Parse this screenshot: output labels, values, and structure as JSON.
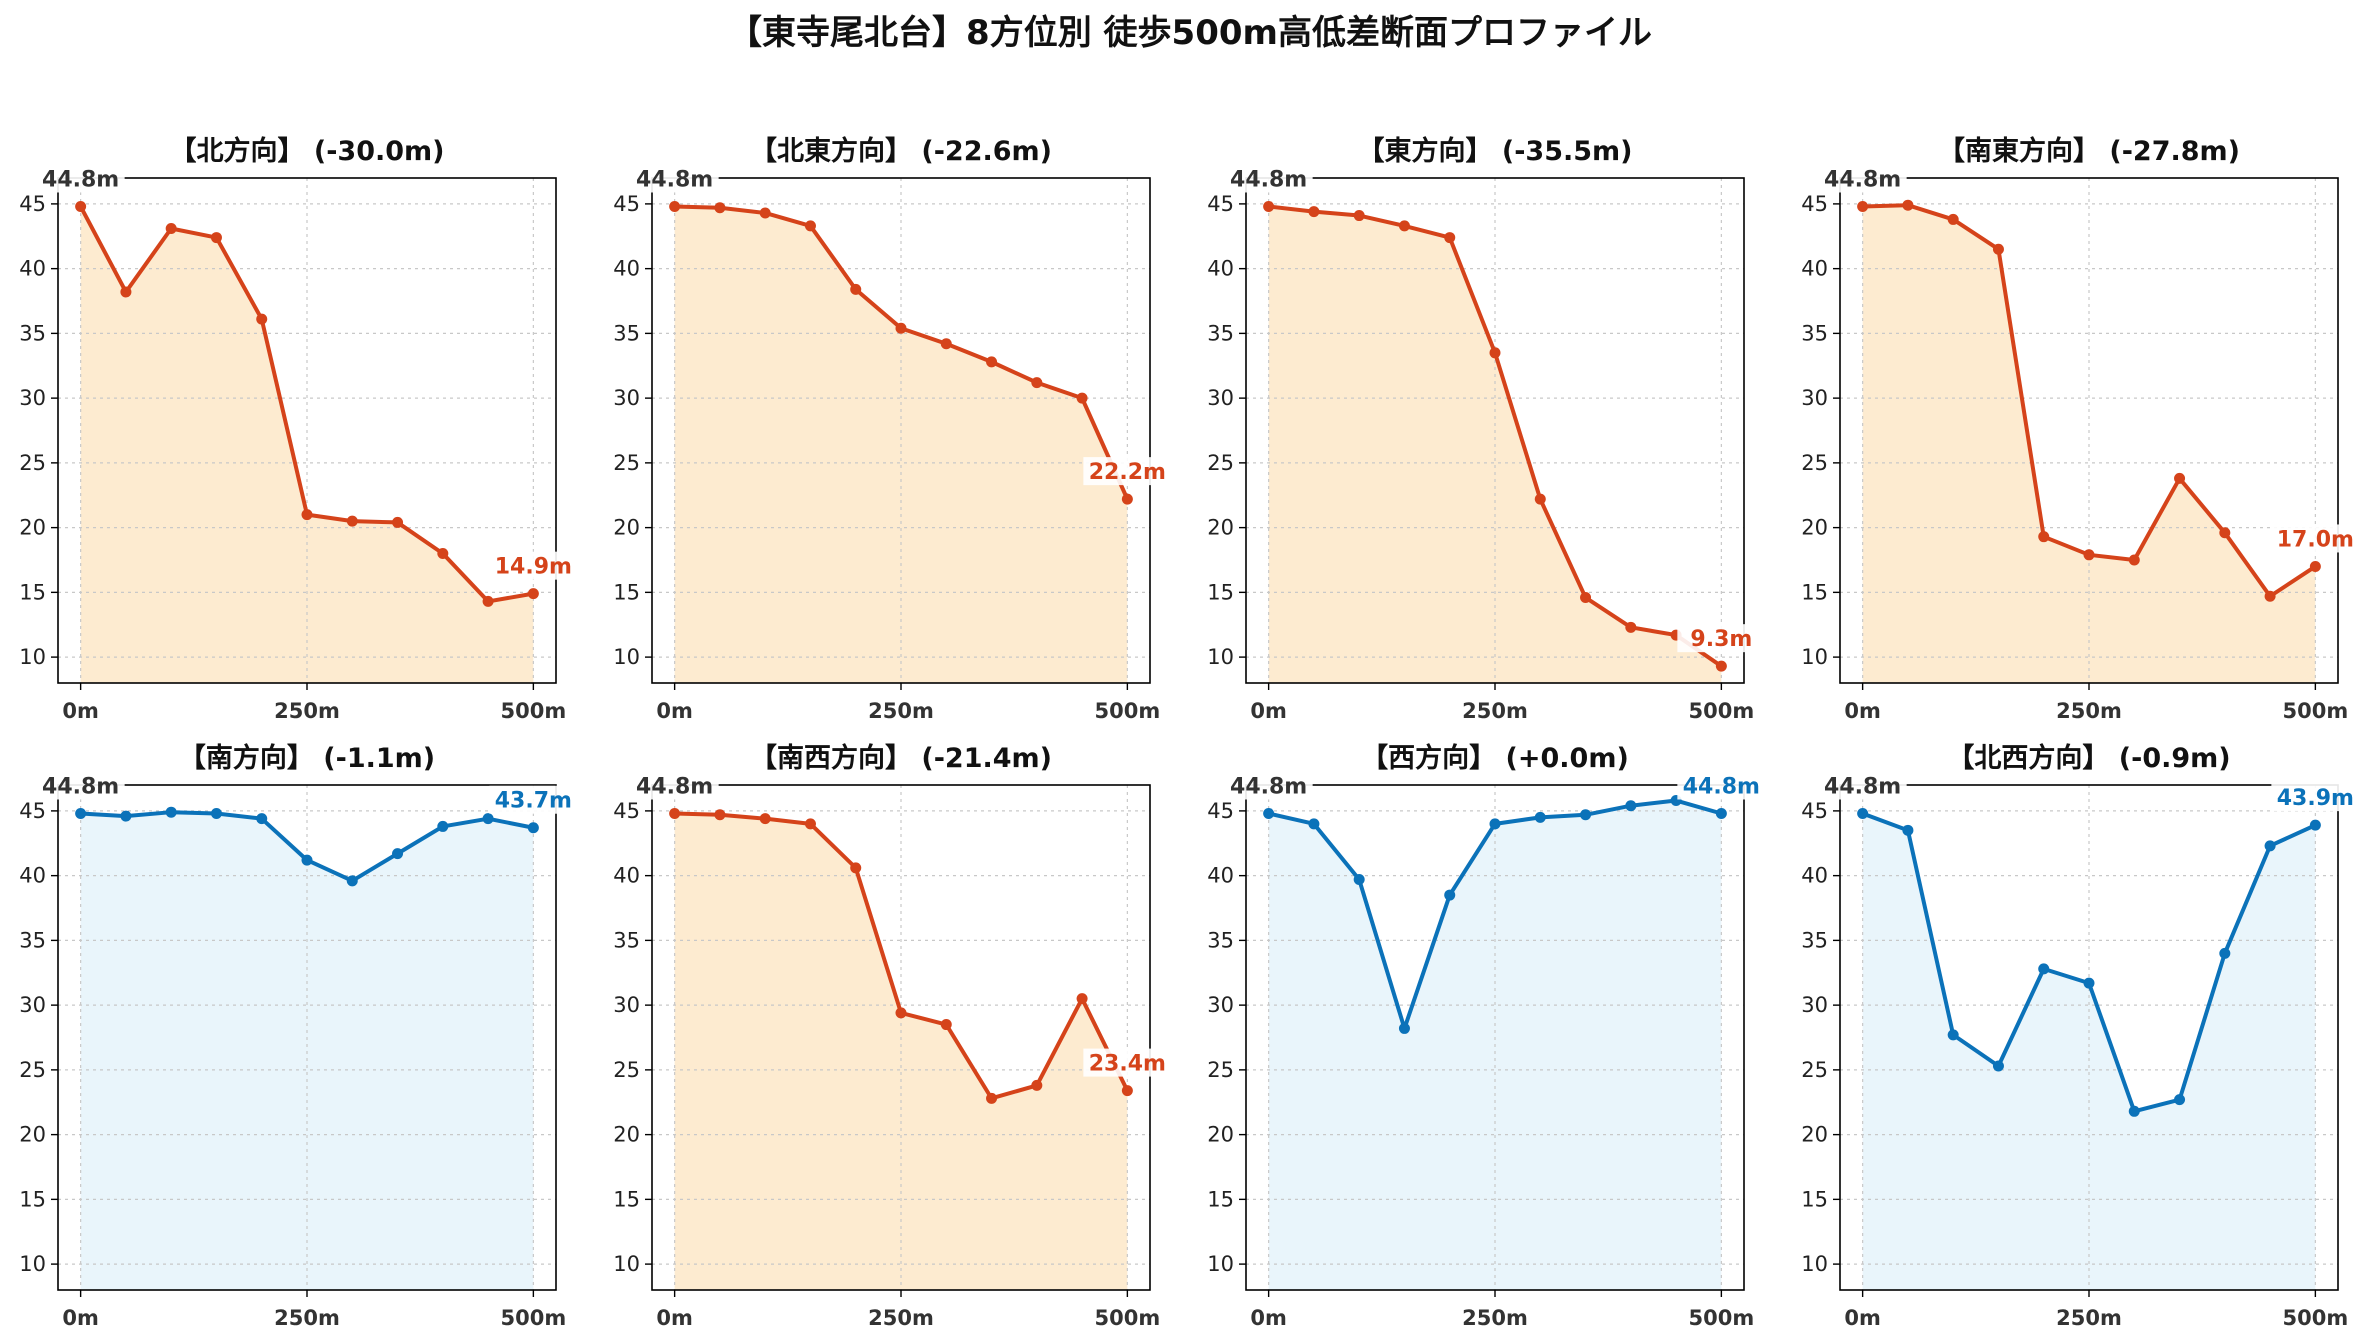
{
  "title": "【東寺尾北台】8方位別 徒歩500m高低差断面プロファイル",
  "colors": {
    "down_line": "#d5431a",
    "down_fill": "#fdebd0",
    "flat_line": "#0b72b9",
    "flat_fill": "#e9f5fb"
  },
  "chart_data": [
    {
      "type": "area",
      "title": "【北方向】 (-30.0m)",
      "x": [
        0,
        50,
        100,
        150,
        200,
        250,
        300,
        350,
        400,
        450,
        500
      ],
      "y": [
        44.8,
        38.2,
        43.1,
        42.4,
        36.1,
        21.0,
        20.5,
        20.4,
        18.0,
        14.3,
        14.9
      ],
      "x_ticks": [
        "0m",
        "250m",
        "500m"
      ],
      "y_ticks": [
        "10",
        "15",
        "20",
        "25",
        "30",
        "35",
        "40",
        "45"
      ],
      "ylim": [
        8,
        47
      ],
      "start_label": "44.8m",
      "end_label": "14.9m",
      "trend": "down",
      "grid": true
    },
    {
      "type": "area",
      "title": "【北東方向】 (-22.6m)",
      "x": [
        0,
        50,
        100,
        150,
        200,
        250,
        300,
        350,
        400,
        450,
        500
      ],
      "y": [
        44.8,
        44.7,
        44.3,
        43.3,
        38.4,
        35.4,
        34.2,
        32.8,
        31.2,
        30.0,
        22.2
      ],
      "x_ticks": [
        "0m",
        "250m",
        "500m"
      ],
      "y_ticks": [
        "10",
        "15",
        "20",
        "25",
        "30",
        "35",
        "40",
        "45"
      ],
      "ylim": [
        8,
        47
      ],
      "start_label": "44.8m",
      "end_label": "22.2m",
      "trend": "down",
      "grid": true
    },
    {
      "type": "area",
      "title": "【東方向】 (-35.5m)",
      "x": [
        0,
        50,
        100,
        150,
        200,
        250,
        300,
        350,
        400,
        450,
        500
      ],
      "y": [
        44.8,
        44.4,
        44.1,
        43.3,
        42.4,
        33.5,
        22.2,
        14.6,
        12.3,
        11.7,
        9.3
      ],
      "x_ticks": [
        "0m",
        "250m",
        "500m"
      ],
      "y_ticks": [
        "10",
        "15",
        "20",
        "25",
        "30",
        "35",
        "40",
        "45"
      ],
      "ylim": [
        8,
        47
      ],
      "start_label": "44.8m",
      "end_label": "9.3m",
      "trend": "down",
      "grid": true
    },
    {
      "type": "area",
      "title": "【南東方向】 (-27.8m)",
      "x": [
        0,
        50,
        100,
        150,
        200,
        250,
        300,
        350,
        400,
        450,
        500
      ],
      "y": [
        44.8,
        44.9,
        43.8,
        41.5,
        19.3,
        17.9,
        17.5,
        23.8,
        19.6,
        14.7,
        17.0
      ],
      "x_ticks": [
        "0m",
        "250m",
        "500m"
      ],
      "y_ticks": [
        "10",
        "15",
        "20",
        "25",
        "30",
        "35",
        "40",
        "45"
      ],
      "ylim": [
        8,
        47
      ],
      "start_label": "44.8m",
      "end_label": "17.0m",
      "trend": "down",
      "grid": true
    },
    {
      "type": "area",
      "title": "【南方向】 (-1.1m)",
      "x": [
        0,
        50,
        100,
        150,
        200,
        250,
        300,
        350,
        400,
        450,
        500
      ],
      "y": [
        44.8,
        44.6,
        44.9,
        44.8,
        44.4,
        41.2,
        39.6,
        41.7,
        43.8,
        44.4,
        43.7
      ],
      "x_ticks": [
        "0m",
        "250m",
        "500m"
      ],
      "y_ticks": [
        "10",
        "15",
        "20",
        "25",
        "30",
        "35",
        "40",
        "45"
      ],
      "ylim": [
        8,
        47
      ],
      "start_label": "44.8m",
      "end_label": "43.7m",
      "trend": "flat",
      "grid": true
    },
    {
      "type": "area",
      "title": "【南西方向】 (-21.4m)",
      "x": [
        0,
        50,
        100,
        150,
        200,
        250,
        300,
        350,
        400,
        450,
        500
      ],
      "y": [
        44.8,
        44.7,
        44.4,
        44.0,
        40.6,
        29.4,
        28.5,
        22.8,
        23.8,
        30.5,
        23.4
      ],
      "x_ticks": [
        "0m",
        "250m",
        "500m"
      ],
      "y_ticks": [
        "10",
        "15",
        "20",
        "25",
        "30",
        "35",
        "40",
        "45"
      ],
      "ylim": [
        8,
        47
      ],
      "start_label": "44.8m",
      "end_label": "23.4m",
      "trend": "down",
      "grid": true
    },
    {
      "type": "area",
      "title": "【西方向】 (+0.0m)",
      "x": [
        0,
        50,
        100,
        150,
        200,
        250,
        300,
        350,
        400,
        450,
        500
      ],
      "y": [
        44.8,
        44.0,
        39.7,
        28.2,
        38.5,
        44.0,
        44.5,
        44.7,
        45.4,
        45.8,
        44.8
      ],
      "x_ticks": [
        "0m",
        "250m",
        "500m"
      ],
      "y_ticks": [
        "10",
        "15",
        "20",
        "25",
        "30",
        "35",
        "40",
        "45"
      ],
      "ylim": [
        8,
        47
      ],
      "start_label": "44.8m",
      "end_label": "44.8m",
      "trend": "flat",
      "grid": true
    },
    {
      "type": "area",
      "title": "【北西方向】 (-0.9m)",
      "x": [
        0,
        50,
        100,
        150,
        200,
        250,
        300,
        350,
        400,
        450,
        500
      ],
      "y": [
        44.8,
        43.5,
        27.7,
        25.3,
        32.8,
        31.7,
        21.8,
        22.7,
        34.0,
        42.3,
        43.9
      ],
      "x_ticks": [
        "0m",
        "250m",
        "500m"
      ],
      "y_ticks": [
        "10",
        "15",
        "20",
        "25",
        "30",
        "35",
        "40",
        "45"
      ],
      "ylim": [
        8,
        47
      ],
      "start_label": "44.8m",
      "end_label": "43.9m",
      "trend": "flat",
      "grid": true
    }
  ]
}
